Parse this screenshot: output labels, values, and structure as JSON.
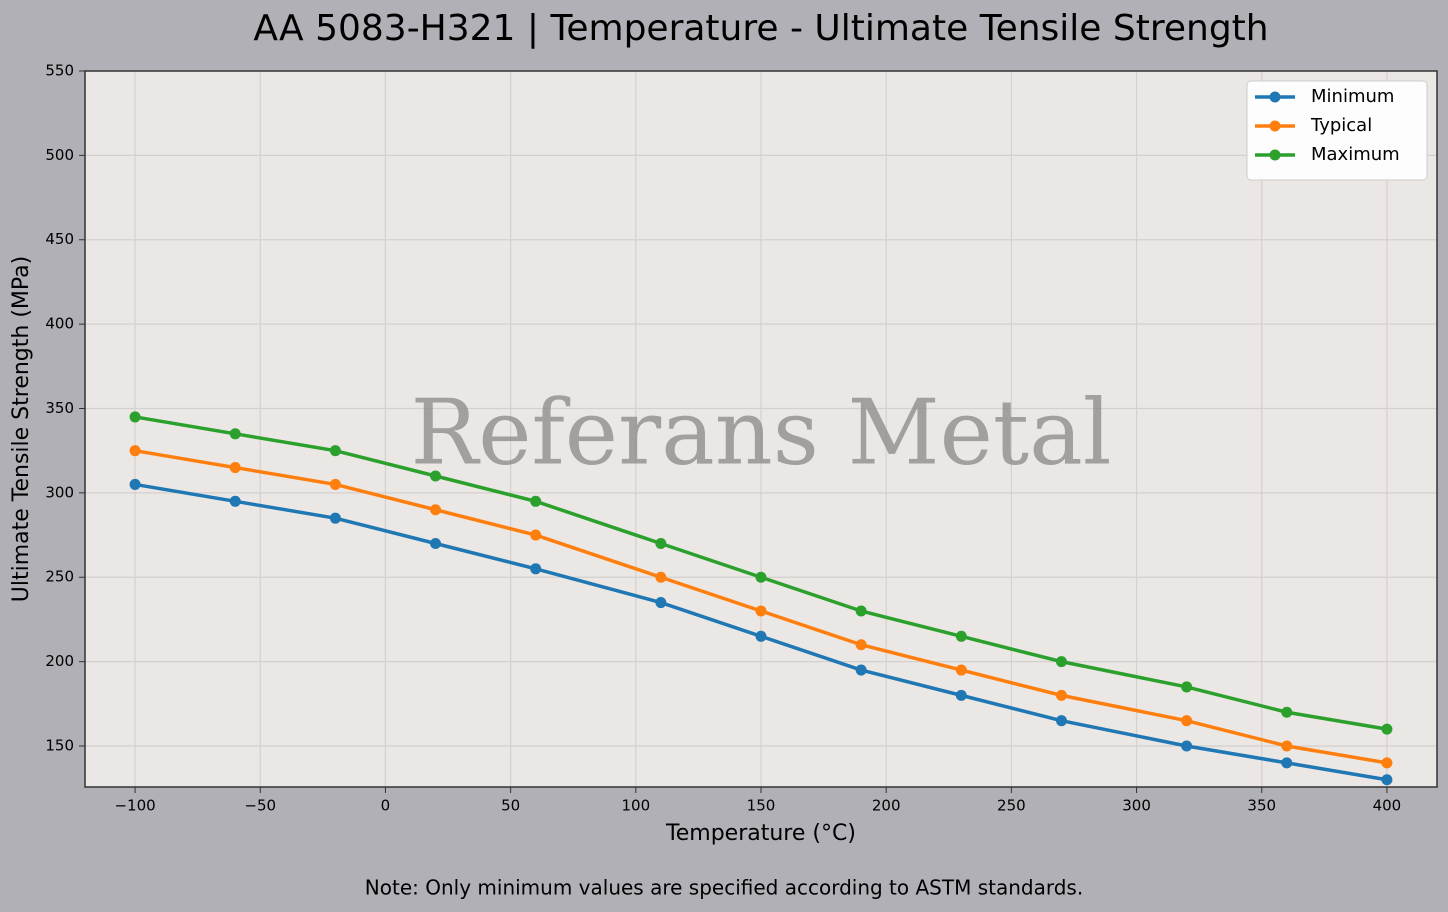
{
  "chart_data": {
    "type": "line",
    "title": "AA 5083-H321 | Temperature - Ultimate Tensile Strength",
    "xlabel": "Temperature (°C)",
    "ylabel": "Ultimate Tensile Strength (MPa)",
    "watermark": "Referans Metal",
    "note": "Note: Only minimum values are specified according to ASTM standards.",
    "x": [
      -100,
      -60,
      -20,
      20,
      60,
      110,
      150,
      190,
      230,
      270,
      320,
      360,
      400
    ],
    "series": [
      {
        "name": "Minimum",
        "color": "#1f77b4",
        "values": [
          305,
          295,
          285,
          270,
          255,
          235,
          215,
          195,
          180,
          165,
          150,
          140,
          130
        ]
      },
      {
        "name": "Typical",
        "color": "#ff7f0e",
        "values": [
          325,
          315,
          305,
          290,
          275,
          250,
          230,
          210,
          195,
          180,
          165,
          150,
          140
        ]
      },
      {
        "name": "Maximum",
        "color": "#2ca02c",
        "values": [
          345,
          335,
          325,
          310,
          295,
          270,
          250,
          230,
          215,
          200,
          185,
          170,
          160
        ]
      }
    ],
    "xlim": [
      -120,
      420
    ],
    "ylim": [
      125.7,
      550
    ],
    "xticks": [
      {
        "value": -100,
        "label": "−100"
      },
      {
        "value": -50,
        "label": "−50"
      },
      0,
      50,
      100,
      150,
      200,
      250,
      300,
      350,
      400
    ],
    "yticks": [
      150,
      200,
      250,
      300,
      350,
      400,
      450,
      500,
      550
    ],
    "grid": true,
    "legend": "upper right"
  }
}
